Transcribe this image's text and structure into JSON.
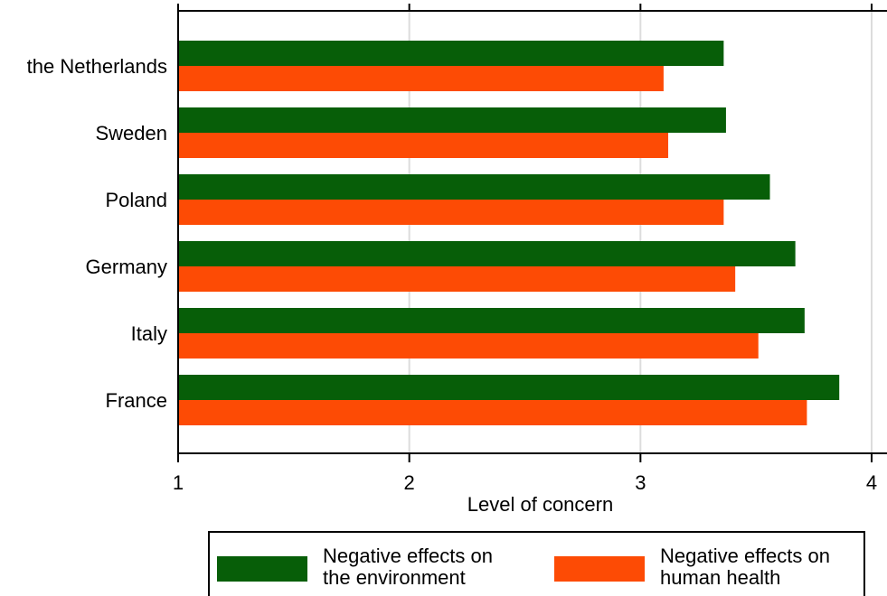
{
  "chart_data": {
    "type": "bar",
    "orientation": "horizontal",
    "categories": [
      "the Netherlands",
      "Sweden",
      "Poland",
      "Germany",
      "Italy",
      "France"
    ],
    "series": [
      {
        "name": "Negative effects on the environment",
        "color": "#075e08",
        "values": [
          3.36,
          3.37,
          3.56,
          3.67,
          3.71,
          3.86
        ]
      },
      {
        "name": "Negative effects on human health",
        "color": "#fd4b05",
        "values": [
          3.1,
          3.12,
          3.36,
          3.41,
          3.51,
          3.72
        ]
      }
    ],
    "xlabel": "Level of concern",
    "xlim": [
      1,
      4
    ],
    "xticks": [
      "1",
      "2",
      "3",
      "4"
    ],
    "grid": true,
    "legend_position": "bottom"
  },
  "legend": {
    "items": [
      {
        "line1": "Negative effects on",
        "line2": "the environment",
        "color": "#075e08"
      },
      {
        "line1": "Negative effects on",
        "line2": "human health",
        "color": "#fd4b05"
      }
    ]
  }
}
